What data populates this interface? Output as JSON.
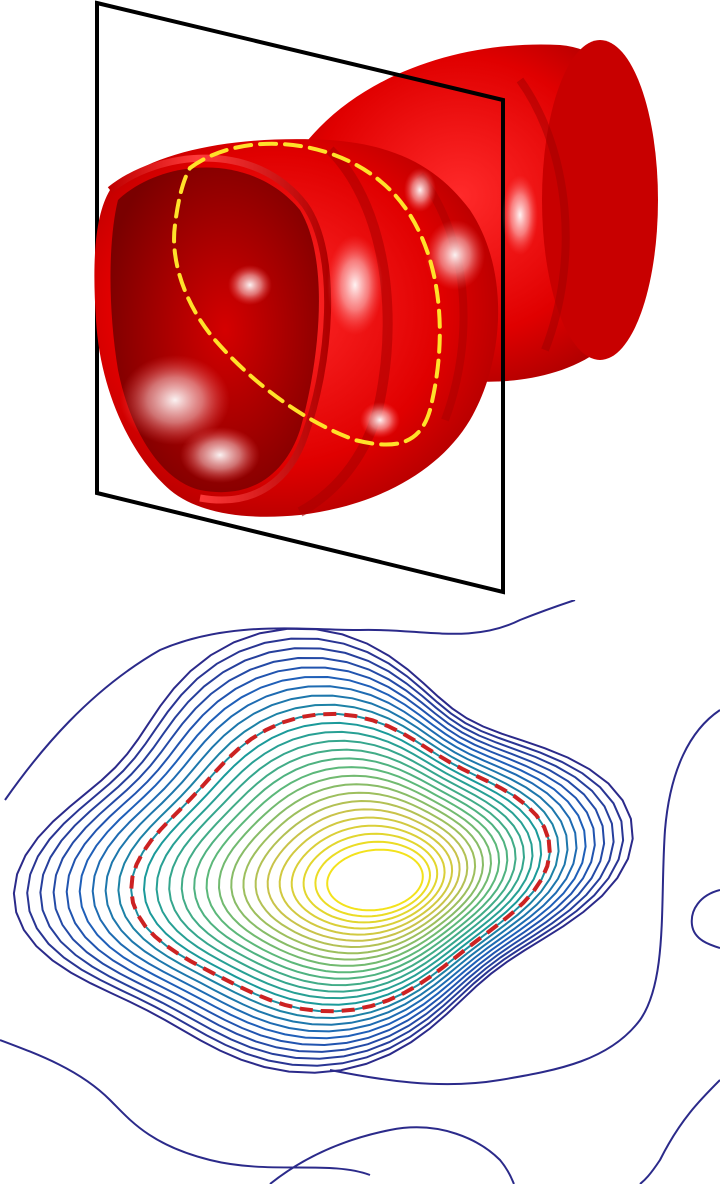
{
  "figure": {
    "surface": {
      "color": "#e00000",
      "highlight_color": "#ffffff",
      "cut_curve_style": "dashed",
      "cut_curve_color": "#ffe12a"
    },
    "slice_plane": {
      "frame_color": "#000000"
    },
    "contour_plot": {
      "level_count": 26,
      "colormap": [
        "#2b2a8a",
        "#1f5fb8",
        "#1b9a9a",
        "#5cb87a",
        "#c9c34a",
        "#f3e21c"
      ],
      "highlight_level_style": "dashed",
      "highlight_level_color": "#cc2222"
    }
  }
}
